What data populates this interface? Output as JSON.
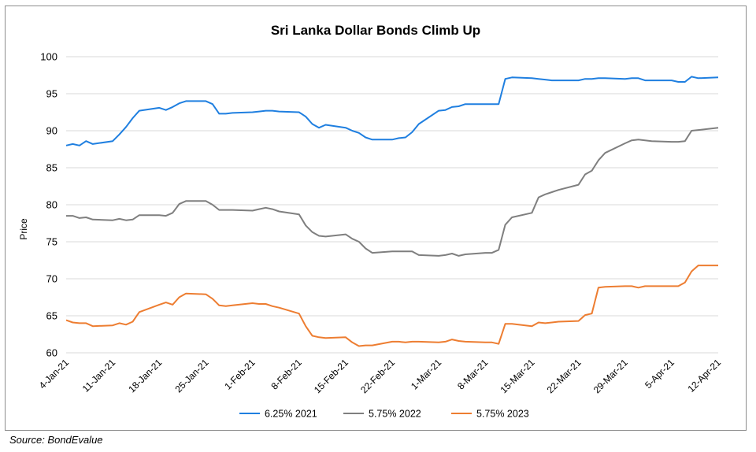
{
  "source_note": "Source: BondEvalue",
  "chart_data": {
    "type": "line",
    "title": "Sri Lanka Dollar Bonds Climb Up",
    "ylabel": "Price",
    "xlabel": "",
    "ylim": [
      60,
      100
    ],
    "yticks": [
      60,
      65,
      70,
      75,
      80,
      85,
      90,
      95,
      100
    ],
    "x_tick_labels": [
      "4-Jan-21",
      "11-Jan-21",
      "18-Jan-21",
      "25-Jan-21",
      "1-Feb-21",
      "8-Feb-21",
      "15-Feb-21",
      "22-Feb-21",
      "1-Mar-21",
      "8-Mar-21",
      "15-Mar-21",
      "22-Mar-21",
      "29-Mar-21",
      "5-Apr-21",
      "12-Apr-21"
    ],
    "x_tick_dates": [
      "2021-01-04",
      "2021-01-11",
      "2021-01-18",
      "2021-01-25",
      "2021-02-01",
      "2021-02-08",
      "2021-02-15",
      "2021-02-22",
      "2021-03-01",
      "2021-03-08",
      "2021-03-15",
      "2021-03-22",
      "2021-03-29",
      "2021-04-05",
      "2021-04-12"
    ],
    "grid": true,
    "legend_position": "bottom",
    "series": [
      {
        "name": "6.25% 2021",
        "color": "#1f7fe0",
        "points": [
          [
            "2021-01-04",
            88.0
          ],
          [
            "2021-01-05",
            88.2
          ],
          [
            "2021-01-06",
            88.0
          ],
          [
            "2021-01-07",
            88.6
          ],
          [
            "2021-01-08",
            88.2
          ],
          [
            "2021-01-11",
            88.6
          ],
          [
            "2021-01-12",
            89.5
          ],
          [
            "2021-01-13",
            90.5
          ],
          [
            "2021-01-14",
            91.7
          ],
          [
            "2021-01-15",
            92.7
          ],
          [
            "2021-01-18",
            93.1
          ],
          [
            "2021-01-19",
            92.8
          ],
          [
            "2021-01-20",
            93.2
          ],
          [
            "2021-01-21",
            93.7
          ],
          [
            "2021-01-22",
            94.0
          ],
          [
            "2021-01-25",
            94.0
          ],
          [
            "2021-01-26",
            93.6
          ],
          [
            "2021-01-27",
            92.3
          ],
          [
            "2021-01-28",
            92.3
          ],
          [
            "2021-01-29",
            92.4
          ],
          [
            "2021-02-01",
            92.5
          ],
          [
            "2021-02-02",
            92.6
          ],
          [
            "2021-02-03",
            92.7
          ],
          [
            "2021-02-04",
            92.7
          ],
          [
            "2021-02-05",
            92.6
          ],
          [
            "2021-02-08",
            92.5
          ],
          [
            "2021-02-09",
            91.9
          ],
          [
            "2021-02-10",
            90.9
          ],
          [
            "2021-02-11",
            90.4
          ],
          [
            "2021-02-12",
            90.8
          ],
          [
            "2021-02-15",
            90.4
          ],
          [
            "2021-02-16",
            90.0
          ],
          [
            "2021-02-17",
            89.7
          ],
          [
            "2021-02-18",
            89.1
          ],
          [
            "2021-02-19",
            88.8
          ],
          [
            "2021-02-22",
            88.8
          ],
          [
            "2021-02-23",
            89.0
          ],
          [
            "2021-02-24",
            89.1
          ],
          [
            "2021-02-25",
            89.8
          ],
          [
            "2021-02-26",
            90.9
          ],
          [
            "2021-03-01",
            92.7
          ],
          [
            "2021-03-02",
            92.8
          ],
          [
            "2021-03-03",
            93.2
          ],
          [
            "2021-03-04",
            93.3
          ],
          [
            "2021-03-05",
            93.6
          ],
          [
            "2021-03-08",
            93.6
          ],
          [
            "2021-03-09",
            93.6
          ],
          [
            "2021-03-10",
            93.6
          ],
          [
            "2021-03-11",
            97.0
          ],
          [
            "2021-03-12",
            97.2
          ],
          [
            "2021-03-15",
            97.1
          ],
          [
            "2021-03-16",
            97.0
          ],
          [
            "2021-03-17",
            96.9
          ],
          [
            "2021-03-18",
            96.8
          ],
          [
            "2021-03-19",
            96.8
          ],
          [
            "2021-03-22",
            96.8
          ],
          [
            "2021-03-23",
            97.0
          ],
          [
            "2021-03-24",
            97.0
          ],
          [
            "2021-03-25",
            97.1
          ],
          [
            "2021-03-26",
            97.1
          ],
          [
            "2021-03-29",
            97.0
          ],
          [
            "2021-03-30",
            97.1
          ],
          [
            "2021-03-31",
            97.1
          ],
          [
            "2021-04-01",
            96.8
          ],
          [
            "2021-04-02",
            96.8
          ],
          [
            "2021-04-05",
            96.8
          ],
          [
            "2021-04-06",
            96.6
          ],
          [
            "2021-04-07",
            96.6
          ],
          [
            "2021-04-08",
            97.3
          ],
          [
            "2021-04-09",
            97.1
          ],
          [
            "2021-04-12",
            97.2
          ]
        ]
      },
      {
        "name": "5.75% 2022",
        "color": "#7f7f7f",
        "points": [
          [
            "2021-01-04",
            78.5
          ],
          [
            "2021-01-05",
            78.5
          ],
          [
            "2021-01-06",
            78.2
          ],
          [
            "2021-01-07",
            78.3
          ],
          [
            "2021-01-08",
            78.0
          ],
          [
            "2021-01-11",
            77.9
          ],
          [
            "2021-01-12",
            78.1
          ],
          [
            "2021-01-13",
            77.9
          ],
          [
            "2021-01-14",
            78.0
          ],
          [
            "2021-01-15",
            78.6
          ],
          [
            "2021-01-18",
            78.6
          ],
          [
            "2021-01-19",
            78.5
          ],
          [
            "2021-01-20",
            78.9
          ],
          [
            "2021-01-21",
            80.1
          ],
          [
            "2021-01-22",
            80.5
          ],
          [
            "2021-01-25",
            80.5
          ],
          [
            "2021-01-26",
            80.0
          ],
          [
            "2021-01-27",
            79.3
          ],
          [
            "2021-01-28",
            79.3
          ],
          [
            "2021-01-29",
            79.3
          ],
          [
            "2021-02-01",
            79.2
          ],
          [
            "2021-02-02",
            79.4
          ],
          [
            "2021-02-03",
            79.6
          ],
          [
            "2021-02-04",
            79.4
          ],
          [
            "2021-02-05",
            79.1
          ],
          [
            "2021-02-08",
            78.7
          ],
          [
            "2021-02-09",
            77.2
          ],
          [
            "2021-02-10",
            76.3
          ],
          [
            "2021-02-11",
            75.8
          ],
          [
            "2021-02-12",
            75.7
          ],
          [
            "2021-02-15",
            76.0
          ],
          [
            "2021-02-16",
            75.4
          ],
          [
            "2021-02-17",
            75.0
          ],
          [
            "2021-02-18",
            74.1
          ],
          [
            "2021-02-19",
            73.5
          ],
          [
            "2021-02-22",
            73.7
          ],
          [
            "2021-02-23",
            73.7
          ],
          [
            "2021-02-24",
            73.7
          ],
          [
            "2021-02-25",
            73.7
          ],
          [
            "2021-02-26",
            73.2
          ],
          [
            "2021-03-01",
            73.1
          ],
          [
            "2021-03-02",
            73.2
          ],
          [
            "2021-03-03",
            73.4
          ],
          [
            "2021-03-04",
            73.1
          ],
          [
            "2021-03-05",
            73.3
          ],
          [
            "2021-03-08",
            73.5
          ],
          [
            "2021-03-09",
            73.5
          ],
          [
            "2021-03-10",
            73.9
          ],
          [
            "2021-03-11",
            77.3
          ],
          [
            "2021-03-12",
            78.3
          ],
          [
            "2021-03-15",
            78.9
          ],
          [
            "2021-03-16",
            81.0
          ],
          [
            "2021-03-17",
            81.4
          ],
          [
            "2021-03-18",
            81.7
          ],
          [
            "2021-03-19",
            82.0
          ],
          [
            "2021-03-22",
            82.7
          ],
          [
            "2021-03-23",
            84.1
          ],
          [
            "2021-03-24",
            84.6
          ],
          [
            "2021-03-25",
            86.0
          ],
          [
            "2021-03-26",
            87.0
          ],
          [
            "2021-03-29",
            88.3
          ],
          [
            "2021-03-30",
            88.7
          ],
          [
            "2021-03-31",
            88.8
          ],
          [
            "2021-04-01",
            88.7
          ],
          [
            "2021-04-02",
            88.6
          ],
          [
            "2021-04-05",
            88.5
          ],
          [
            "2021-04-06",
            88.5
          ],
          [
            "2021-04-07",
            88.6
          ],
          [
            "2021-04-08",
            90.0
          ],
          [
            "2021-04-09",
            90.1
          ],
          [
            "2021-04-12",
            90.4
          ]
        ]
      },
      {
        "name": "5.75% 2023",
        "color": "#ed7d31",
        "points": [
          [
            "2021-01-04",
            64.4
          ],
          [
            "2021-01-05",
            64.1
          ],
          [
            "2021-01-06",
            64.0
          ],
          [
            "2021-01-07",
            64.0
          ],
          [
            "2021-01-08",
            63.6
          ],
          [
            "2021-01-11",
            63.7
          ],
          [
            "2021-01-12",
            64.0
          ],
          [
            "2021-01-13",
            63.8
          ],
          [
            "2021-01-14",
            64.2
          ],
          [
            "2021-01-15",
            65.5
          ],
          [
            "2021-01-18",
            66.5
          ],
          [
            "2021-01-19",
            66.8
          ],
          [
            "2021-01-20",
            66.5
          ],
          [
            "2021-01-21",
            67.5
          ],
          [
            "2021-01-22",
            68.0
          ],
          [
            "2021-01-25",
            67.9
          ],
          [
            "2021-01-26",
            67.3
          ],
          [
            "2021-01-27",
            66.4
          ],
          [
            "2021-01-28",
            66.3
          ],
          [
            "2021-01-29",
            66.4
          ],
          [
            "2021-02-01",
            66.7
          ],
          [
            "2021-02-02",
            66.6
          ],
          [
            "2021-02-03",
            66.6
          ],
          [
            "2021-02-04",
            66.3
          ],
          [
            "2021-02-05",
            66.1
          ],
          [
            "2021-02-08",
            65.3
          ],
          [
            "2021-02-09",
            63.6
          ],
          [
            "2021-02-10",
            62.3
          ],
          [
            "2021-02-11",
            62.1
          ],
          [
            "2021-02-12",
            62.0
          ],
          [
            "2021-02-15",
            62.1
          ],
          [
            "2021-02-16",
            61.4
          ],
          [
            "2021-02-17",
            60.9
          ],
          [
            "2021-02-18",
            61.0
          ],
          [
            "2021-02-19",
            61.0
          ],
          [
            "2021-02-22",
            61.5
          ],
          [
            "2021-02-23",
            61.5
          ],
          [
            "2021-02-24",
            61.4
          ],
          [
            "2021-02-25",
            61.5
          ],
          [
            "2021-02-26",
            61.5
          ],
          [
            "2021-03-01",
            61.4
          ],
          [
            "2021-03-02",
            61.5
          ],
          [
            "2021-03-03",
            61.8
          ],
          [
            "2021-03-04",
            61.6
          ],
          [
            "2021-03-05",
            61.5
          ],
          [
            "2021-03-08",
            61.4
          ],
          [
            "2021-03-09",
            61.4
          ],
          [
            "2021-03-10",
            61.2
          ],
          [
            "2021-03-11",
            63.9
          ],
          [
            "2021-03-12",
            63.9
          ],
          [
            "2021-03-15",
            63.6
          ],
          [
            "2021-03-16",
            64.1
          ],
          [
            "2021-03-17",
            64.0
          ],
          [
            "2021-03-18",
            64.1
          ],
          [
            "2021-03-19",
            64.2
          ],
          [
            "2021-03-22",
            64.3
          ],
          [
            "2021-03-23",
            65.1
          ],
          [
            "2021-03-24",
            65.3
          ],
          [
            "2021-03-25",
            68.8
          ],
          [
            "2021-03-26",
            68.9
          ],
          [
            "2021-03-29",
            69.0
          ],
          [
            "2021-03-30",
            69.0
          ],
          [
            "2021-03-31",
            68.8
          ],
          [
            "2021-04-01",
            69.0
          ],
          [
            "2021-04-02",
            69.0
          ],
          [
            "2021-04-05",
            69.0
          ],
          [
            "2021-04-06",
            69.0
          ],
          [
            "2021-04-07",
            69.5
          ],
          [
            "2021-04-08",
            71.0
          ],
          [
            "2021-04-09",
            71.8
          ],
          [
            "2021-04-12",
            71.8
          ]
        ]
      }
    ]
  }
}
